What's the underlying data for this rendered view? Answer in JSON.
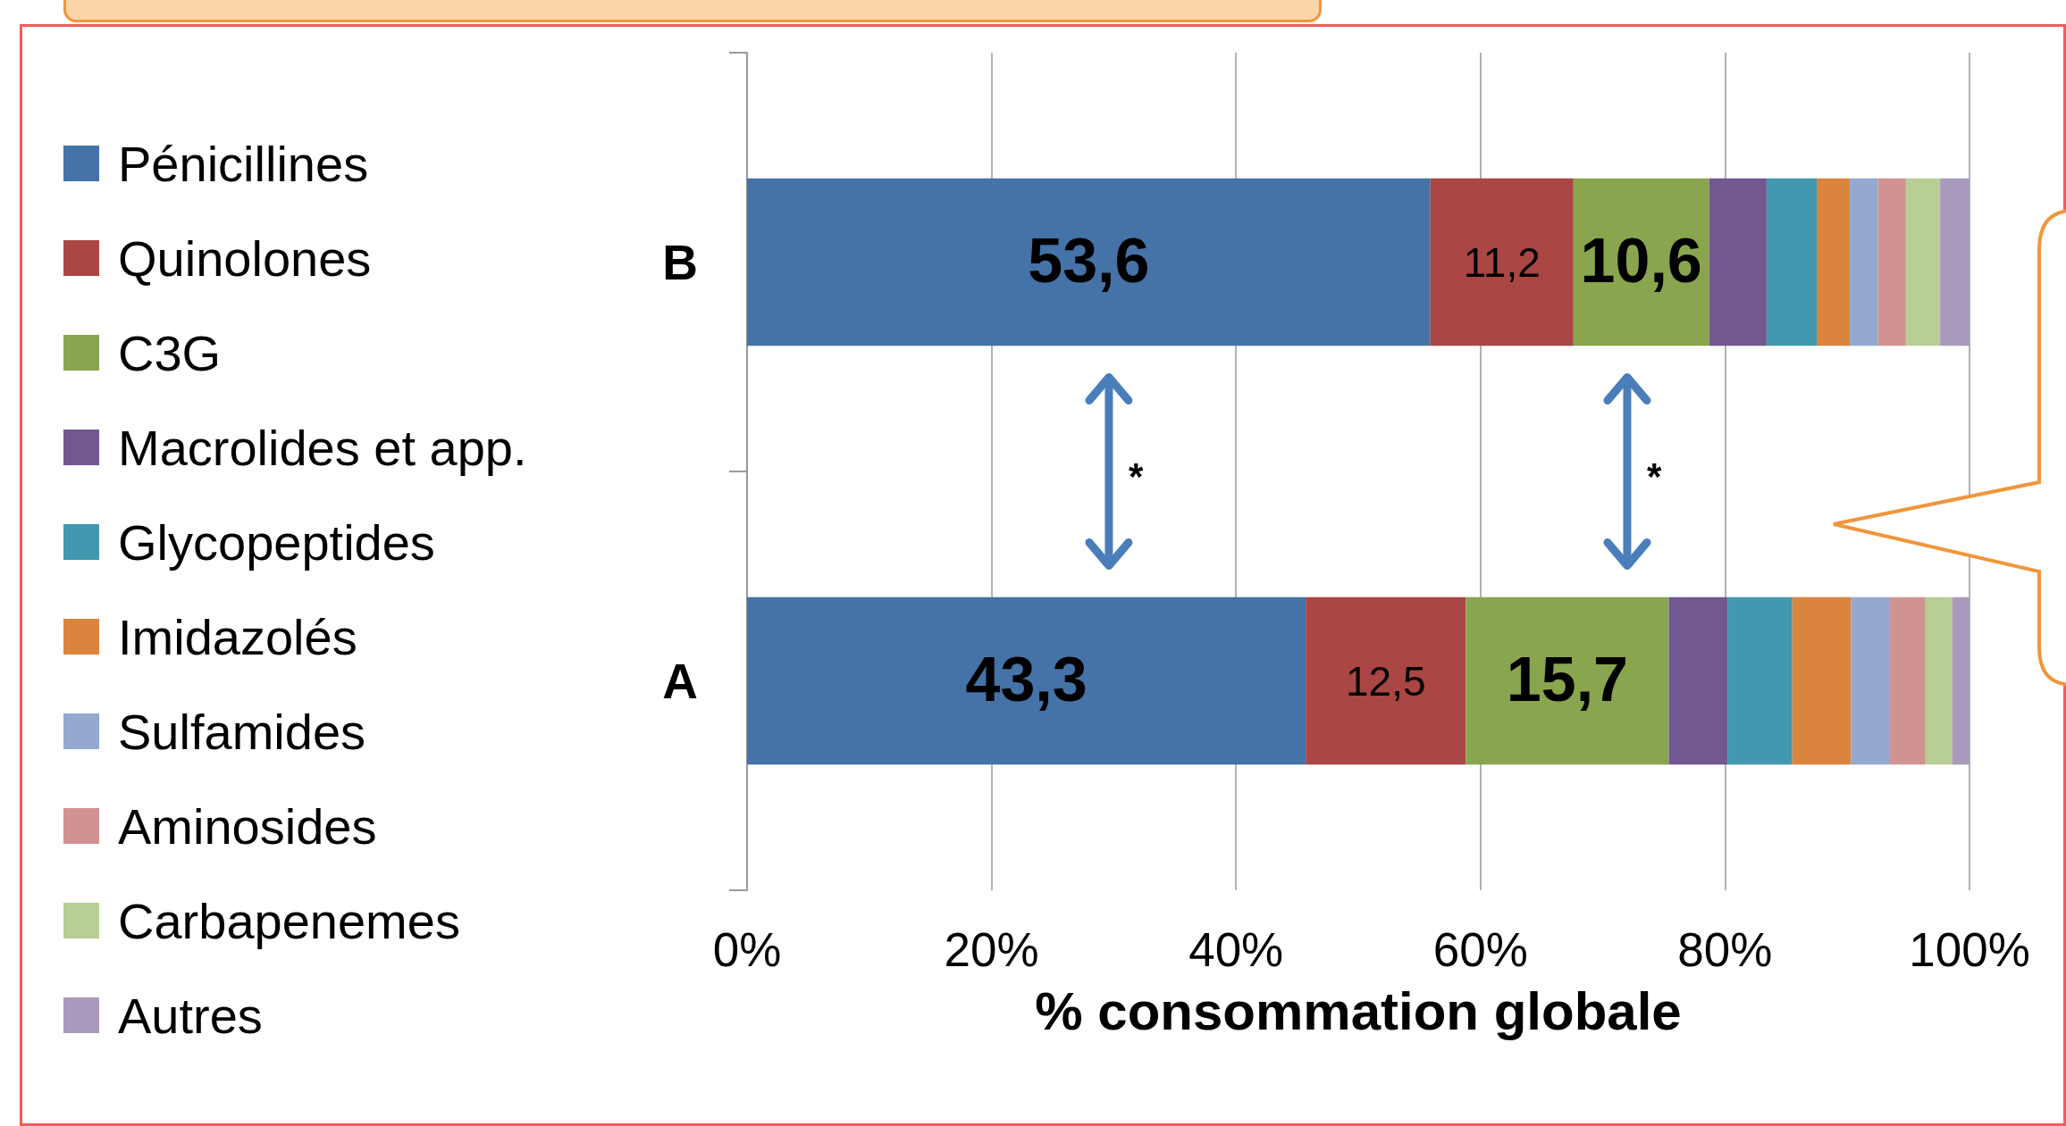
{
  "chart_data": {
    "type": "bar",
    "orientation": "horizontal",
    "stacked": true,
    "categories": [
      "B",
      "A"
    ],
    "xlabel": "% consommation globale",
    "xlim": [
      0,
      100
    ],
    "xticks": [
      {
        "value": 0,
        "label": "0%"
      },
      {
        "value": 20,
        "label": "20%"
      },
      {
        "value": 40,
        "label": "40%"
      },
      {
        "value": 60,
        "label": "60%"
      },
      {
        "value": 80,
        "label": "80%"
      },
      {
        "value": 100,
        "label": "100%"
      }
    ],
    "grid": "x",
    "legend": "left",
    "annotations": [
      "53,6",
      "11,2",
      "10,6",
      "43,3",
      "12,5",
      "15,7",
      "*",
      "*"
    ],
    "series": [
      {
        "name": "Pénicillines",
        "color": "#4572a7",
        "values": [
          55.9,
          45.7
        ]
      },
      {
        "name": "Quinolones",
        "color": "#aa4643",
        "values": [
          11.7,
          13.1
        ]
      },
      {
        "name": "C3G",
        "color": "#89a54e",
        "values": [
          11.1,
          16.6
        ]
      },
      {
        "name": "Macrolides et app.",
        "color": "#71588f",
        "values": [
          4.7,
          4.8
        ]
      },
      {
        "name": "Glycopeptides",
        "color": "#4198af",
        "values": [
          4.1,
          5.3
        ]
      },
      {
        "name": "Imidazolés",
        "color": "#db843d",
        "values": [
          2.7,
          4.8
        ]
      },
      {
        "name": "Sulfamides",
        "color": "#93a9cf",
        "values": [
          2.3,
          3.2
        ]
      },
      {
        "name": "Aminosides",
        "color": "#d19392",
        "values": [
          2.3,
          2.9
        ]
      },
      {
        "name": "Carbapenemes",
        "color": "#b9cd96",
        "values": [
          2.8,
          2.2
        ]
      },
      {
        "name": "Autres",
        "color": "#a99bbd",
        "values": [
          2.4,
          1.4
        ]
      }
    ]
  }
}
